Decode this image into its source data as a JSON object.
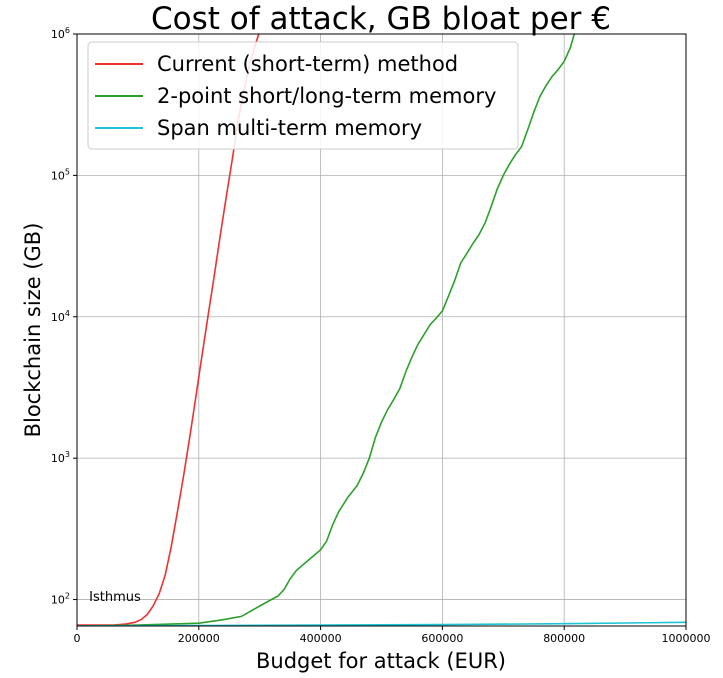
{
  "chart_data": {
    "type": "line",
    "title": "Cost of attack, GB bloat per €",
    "xlabel": "Budget for attack (EUR)",
    "ylabel": "Blockchain size (GB)",
    "xlim": [
      0,
      1000000
    ],
    "ylim": [
      65,
      1000000
    ],
    "yscale": "log",
    "grid": true,
    "legend_position": "top-left",
    "x_ticks": [
      {
        "value": 0,
        "label": "0"
      },
      {
        "value": 200000,
        "label": "200000"
      },
      {
        "value": 400000,
        "label": "400000"
      },
      {
        "value": 600000,
        "label": "600000"
      },
      {
        "value": 800000,
        "label": "800000"
      },
      {
        "value": 1000000,
        "label": "1000000"
      }
    ],
    "y_ticks": [
      {
        "value": 100,
        "base": "10",
        "exp": "2"
      },
      {
        "value": 1000,
        "base": "10",
        "exp": "3"
      },
      {
        "value": 10000,
        "base": "10",
        "exp": "4"
      },
      {
        "value": 100000,
        "base": "10",
        "exp": "5"
      },
      {
        "value": 1000000,
        "base": "10",
        "exp": "6"
      }
    ],
    "annotations": [
      {
        "text": "Isthmus",
        "x": 20000,
        "y": 98
      }
    ],
    "series": [
      {
        "name": "Current (short-term) method",
        "color": "#f03030",
        "x": [
          0,
          60000,
          80000,
          95000,
          105000,
          115000,
          125000,
          135000,
          145000,
          155000,
          165000,
          175000,
          185000,
          195000,
          205000,
          215000,
          225000,
          235000,
          245000,
          255000,
          265000,
          275000,
          285000,
          295000,
          300000
        ],
        "y": [
          66,
          66,
          67,
          69,
          72,
          78,
          90,
          110,
          150,
          240,
          420,
          750,
          1400,
          2700,
          5200,
          10000,
          19000,
          37000,
          70000,
          130000,
          250000,
          420000,
          650000,
          900000,
          1050000
        ]
      },
      {
        "name": "2-point short/long-term memory",
        "color": "#2ca02c",
        "x": [
          0,
          100000,
          200000,
          240000,
          270000,
          300000,
          330000,
          340000,
          350000,
          360000,
          380000,
          400000,
          410000,
          420000,
          430000,
          445000,
          460000,
          470000,
          480000,
          490000,
          500000,
          510000,
          520000,
          530000,
          540000,
          550000,
          560000,
          570000,
          580000,
          590000,
          600000,
          610000,
          620000,
          630000,
          640000,
          650000,
          660000,
          670000,
          680000,
          690000,
          700000,
          710000,
          720000,
          730000,
          740000,
          750000,
          760000,
          770000,
          780000,
          790000,
          800000,
          810000,
          818000
        ],
        "y": [
          65,
          66,
          68,
          72,
          76,
          90,
          106,
          118,
          140,
          160,
          190,
          225,
          260,
          340,
          420,
          530,
          640,
          780,
          1000,
          1400,
          1800,
          2200,
          2600,
          3100,
          4100,
          5200,
          6400,
          7500,
          8800,
          9800,
          11000,
          14000,
          18000,
          24000,
          28000,
          33000,
          38000,
          46000,
          60000,
          80000,
          100000,
          120000,
          140000,
          160000,
          210000,
          280000,
          360000,
          430000,
          500000,
          560000,
          640000,
          800000,
          1050000
        ]
      },
      {
        "name": "Span multi-term memory",
        "color": "#1cc4d4",
        "x": [
          0,
          200000,
          400000,
          600000,
          800000,
          1000000
        ],
        "y": [
          65,
          65.5,
          66,
          66.5,
          67.5,
          69
        ]
      }
    ]
  }
}
